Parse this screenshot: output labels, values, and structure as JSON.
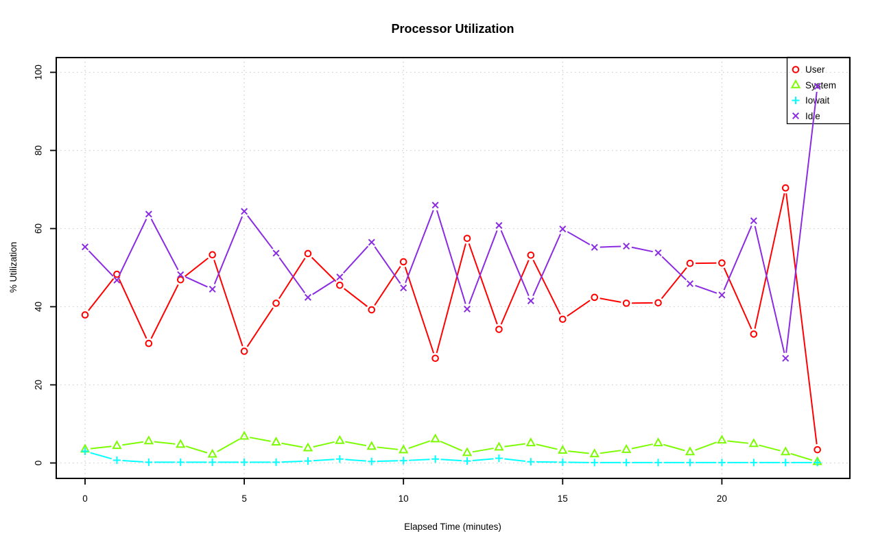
{
  "title": "Processor Utilization",
  "chart_data": {
    "type": "line",
    "title": "Processor Utilization",
    "xlabel": "Elapsed Time (minutes)",
    "ylabel": "% Utilization",
    "x": [
      0,
      1,
      2,
      3,
      4,
      5,
      6,
      7,
      8,
      9,
      10,
      11,
      12,
      13,
      14,
      15,
      16,
      17,
      18,
      19,
      20,
      21,
      22,
      23
    ],
    "xticks": [
      0,
      5,
      10,
      15,
      20
    ],
    "yticks": [
      0,
      20,
      40,
      60,
      80,
      100
    ],
    "xlim": [
      -0.9,
      24.0
    ],
    "ylim": [
      -4,
      104
    ],
    "grid": true,
    "grid_color": "#d2d2d2",
    "legend_position": "top-right",
    "background_color": "#ffffff",
    "axis_color": "#000000",
    "series": [
      {
        "name": "User",
        "marker": "circle",
        "color": "#ff0000",
        "values": [
          37.9,
          48.3,
          30.6,
          46.9,
          53.3,
          28.6,
          40.9,
          53.6,
          45.5,
          39.2,
          51.5,
          26.8,
          57.5,
          34.2,
          53.2,
          36.8,
          42.4,
          40.9,
          41.0,
          51.1,
          51.2,
          33.0,
          70.4,
          3.4
        ]
      },
      {
        "name": "System",
        "marker": "triangle",
        "color": "#7cfc00",
        "values": [
          3.5,
          4.4,
          5.6,
          4.7,
          2.2,
          6.8,
          5.3,
          3.8,
          5.7,
          4.2,
          3.3,
          6.1,
          2.6,
          4.0,
          5.1,
          3.2,
          2.3,
          3.4,
          5.1,
          2.8,
          5.8,
          4.9,
          2.8,
          0.3
        ]
      },
      {
        "name": "Iowait",
        "marker": "plus",
        "color": "#00ffff",
        "values": [
          3.0,
          0.7,
          0.2,
          0.2,
          0.2,
          0.2,
          0.2,
          0.5,
          1.0,
          0.4,
          0.6,
          1.0,
          0.5,
          1.2,
          0.3,
          0.2,
          0.1,
          0.1,
          0.1,
          0.1,
          0.1,
          0.1,
          0.1,
          0.1
        ]
      },
      {
        "name": "Idle",
        "marker": "cross",
        "color": "#8a2be2",
        "values": [
          55.3,
          46.8,
          63.7,
          48.2,
          44.5,
          64.4,
          53.7,
          42.4,
          47.6,
          56.5,
          44.8,
          66.0,
          39.4,
          60.8,
          41.5,
          59.9,
          55.2,
          55.5,
          53.8,
          45.9,
          43.0,
          62.0,
          26.8,
          96.4
        ]
      }
    ]
  }
}
